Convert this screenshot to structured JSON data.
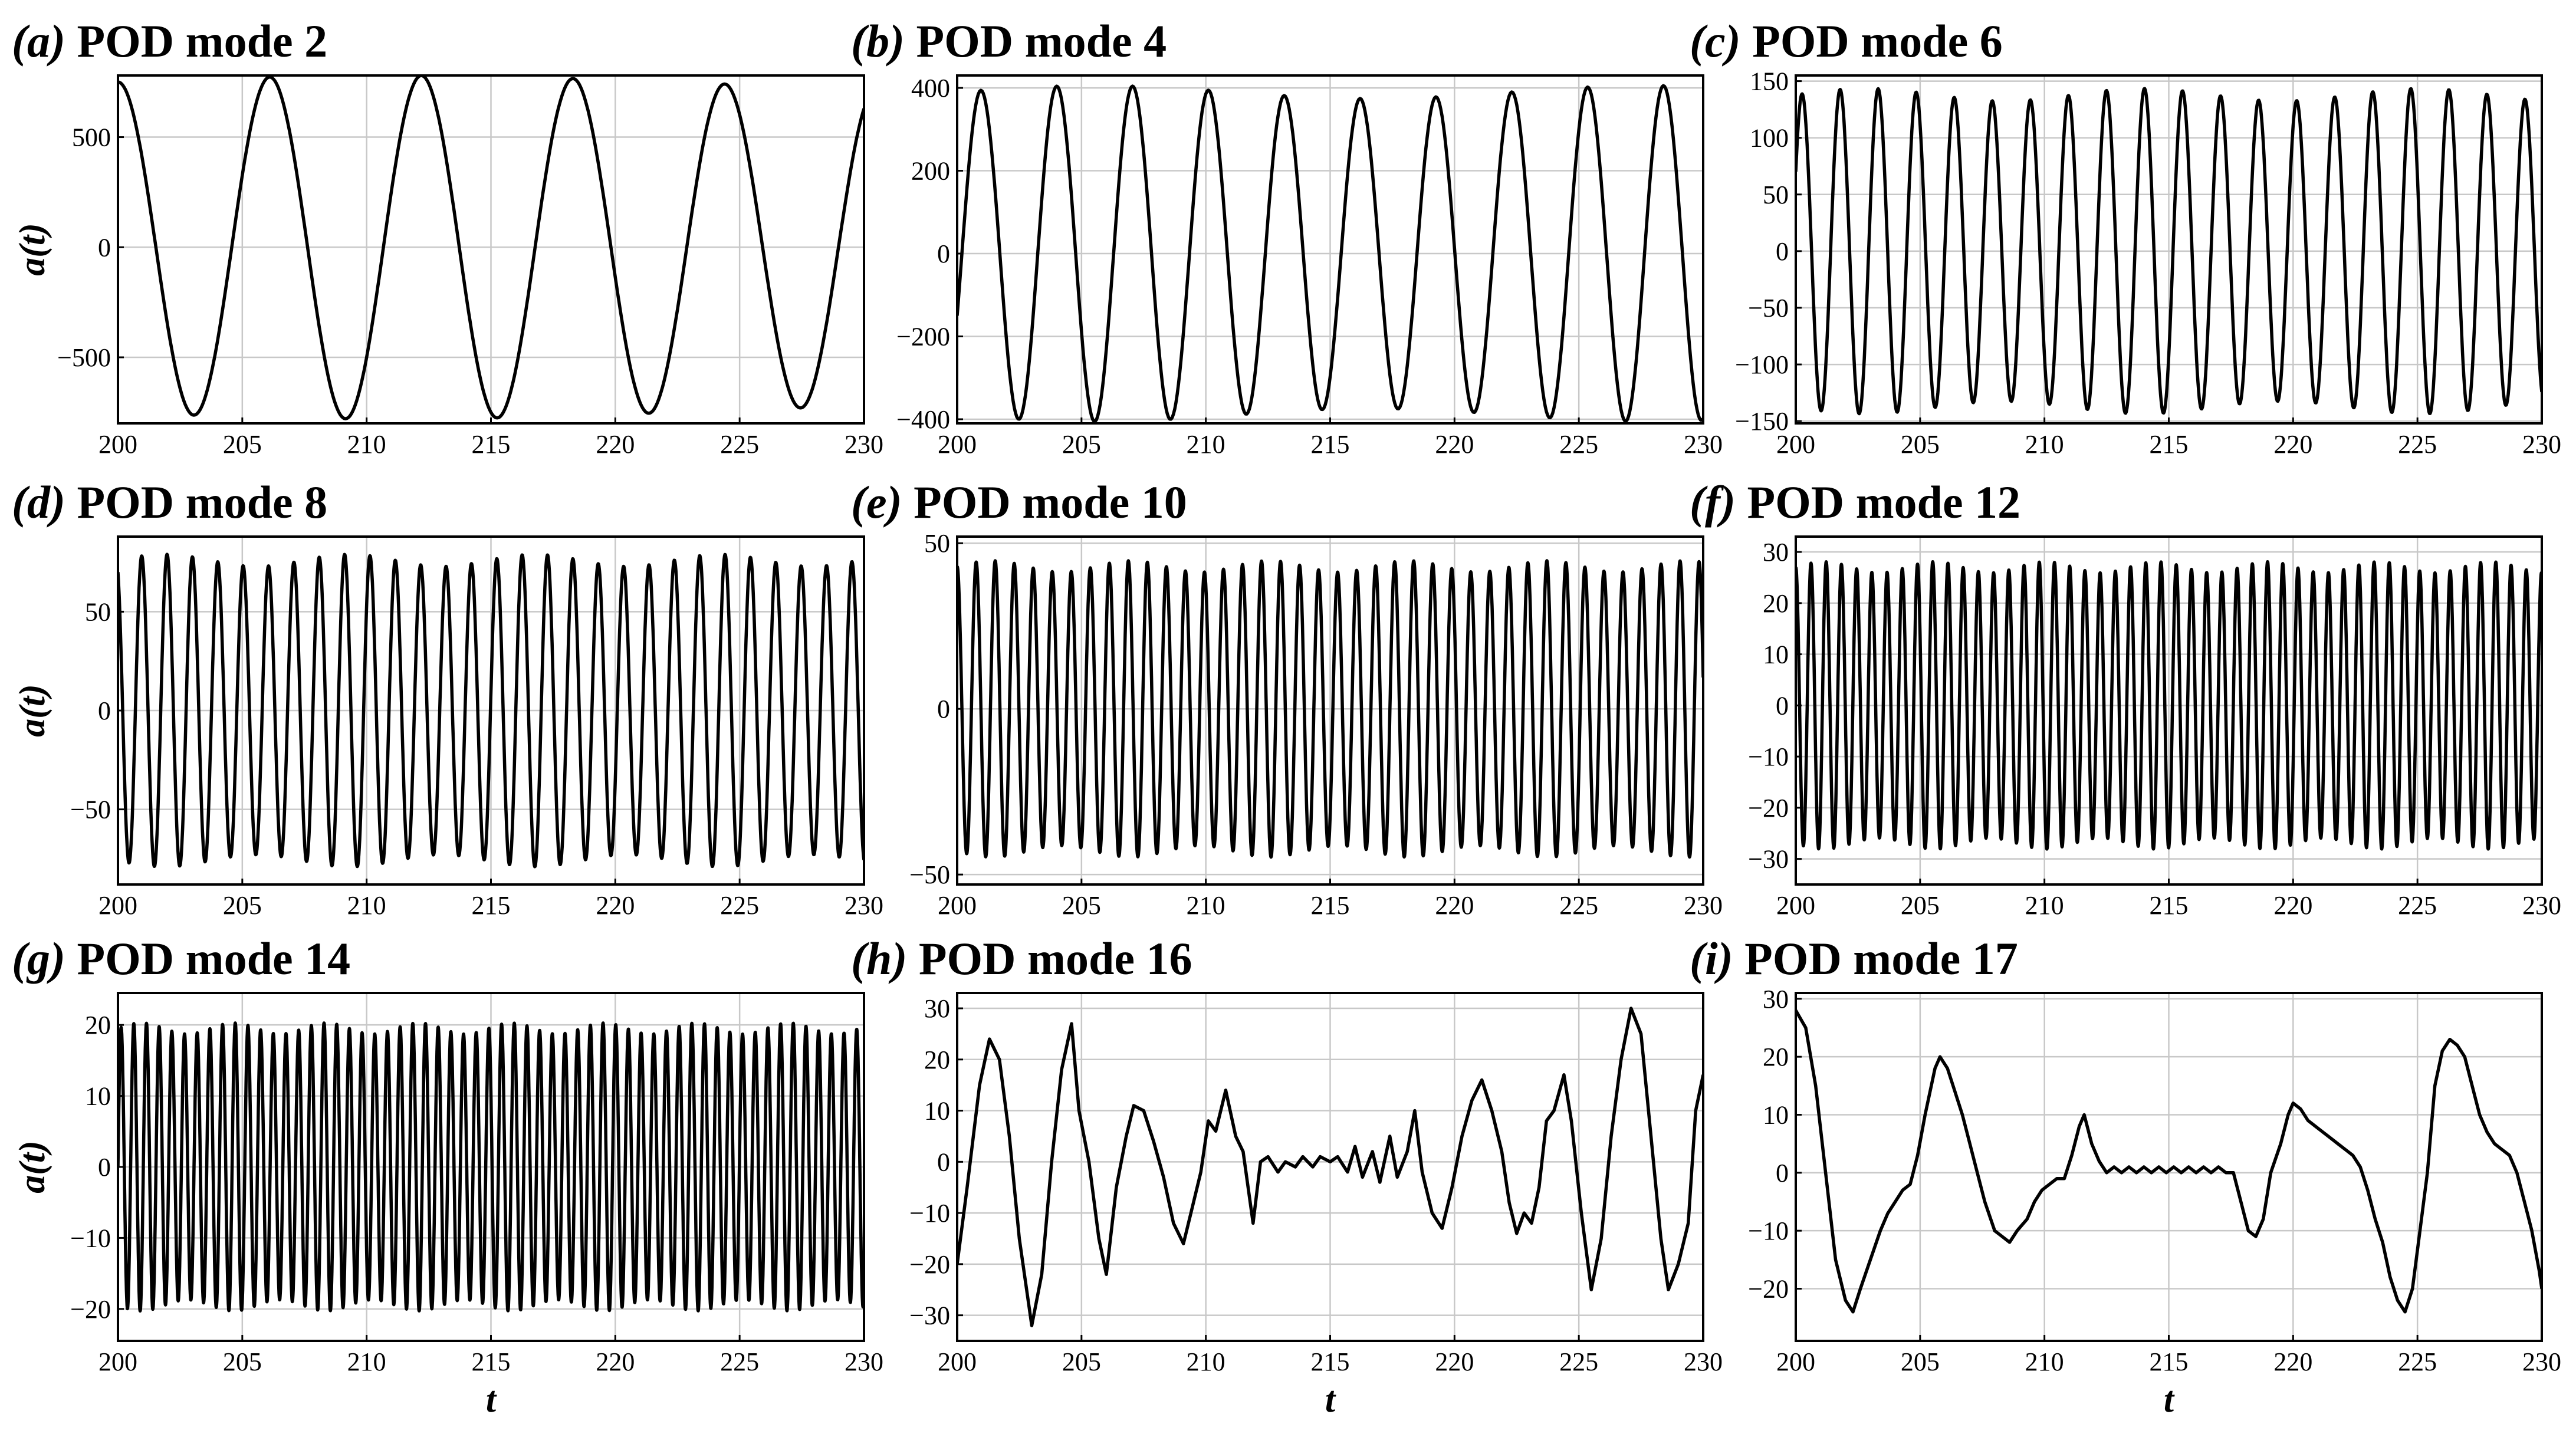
{
  "figure": {
    "xlabel": "t",
    "ylabel": "a(t)"
  },
  "chart_data": [
    {
      "type": "line",
      "tag": "(a)",
      "title": "POD mode 2",
      "xlim": [
        200,
        230
      ],
      "ylim": [
        -800,
        780
      ],
      "xticks": [
        200,
        205,
        210,
        215,
        220,
        225,
        230
      ],
      "yticks": [
        -500,
        0,
        500
      ],
      "ylabel": "a(t)",
      "xlabel": "",
      "signal": {
        "kind": "sine",
        "period": 6.1,
        "amplitude": 750,
        "phase_start": 0.25,
        "start_value": 750
      }
    },
    {
      "type": "line",
      "tag": "(b)",
      "title": "POD mode 4",
      "xlim": [
        200,
        230
      ],
      "ylim": [
        -410,
        430
      ],
      "xticks": [
        200,
        205,
        210,
        215,
        220,
        225,
        230
      ],
      "yticks": [
        -400,
        -200,
        0,
        200,
        400
      ],
      "ylabel": "",
      "xlabel": "",
      "signal": {
        "kind": "sine",
        "period": 3.05,
        "amplitude": 390,
        "phase_start": -0.1,
        "start_value": -150
      }
    },
    {
      "type": "line",
      "tag": "(c)",
      "title": "POD mode 6",
      "xlim": [
        200,
        230
      ],
      "ylim": [
        -152,
        155
      ],
      "xticks": [
        200,
        205,
        210,
        215,
        220,
        225,
        230
      ],
      "yticks": [
        -150,
        -100,
        -50,
        0,
        50,
        100,
        150
      ],
      "ylabel": "",
      "xlabel": "",
      "signal": {
        "kind": "sine",
        "period": 1.53,
        "amplitude": 138,
        "phase_start": 0.05,
        "start_value": 70
      }
    },
    {
      "type": "line",
      "tag": "(d)",
      "title": "POD mode 8",
      "xlim": [
        200,
        230
      ],
      "ylim": [
        -88,
        88
      ],
      "xticks": [
        200,
        205,
        210,
        215,
        220,
        225,
        230
      ],
      "yticks": [
        -50,
        0,
        50
      ],
      "ylabel": "a(t)",
      "xlabel": "",
      "signal": {
        "kind": "sine",
        "period": 1.02,
        "amplitude": 76,
        "phase_start": 0.2,
        "start_value": 70
      }
    },
    {
      "type": "line",
      "tag": "(e)",
      "title": "POD mode 10",
      "xlim": [
        200,
        230
      ],
      "ylim": [
        -53,
        52
      ],
      "xticks": [
        200,
        205,
        210,
        215,
        220,
        225,
        230
      ],
      "yticks": [
        -50,
        0,
        50
      ],
      "ylabel": "",
      "xlabel": "",
      "signal": {
        "kind": "sine",
        "period": 0.765,
        "amplitude": 43,
        "phase_start": 0.25,
        "start_value": 43
      }
    },
    {
      "type": "line",
      "tag": "(f)",
      "title": "POD mode 12",
      "xlim": [
        200,
        230
      ],
      "ylim": [
        -35,
        33
      ],
      "xticks": [
        200,
        205,
        210,
        215,
        220,
        225,
        230
      ],
      "yticks": [
        -30,
        -20,
        -10,
        0,
        10,
        20,
        30
      ],
      "ylabel": "",
      "xlabel": "",
      "signal": {
        "kind": "sine",
        "period": 0.612,
        "amplitude": 27,
        "phase_start": 0.2,
        "start_value": 27
      }
    },
    {
      "type": "line",
      "tag": "(g)",
      "title": "POD mode 14",
      "xlim": [
        200,
        230
      ],
      "ylim": [
        -24.5,
        24.5
      ],
      "xticks": [
        200,
        205,
        210,
        215,
        220,
        225,
        230
      ],
      "yticks": [
        -20,
        -10,
        0,
        10,
        20
      ],
      "ylabel": "a(t)",
      "xlabel": "t",
      "signal": {
        "kind": "sine",
        "period": 0.51,
        "amplitude": 19.5,
        "phase_start": 0.0,
        "start_value": 0
      }
    },
    {
      "type": "line",
      "tag": "(h)",
      "title": "POD mode 16",
      "xlim": [
        200,
        230
      ],
      "ylim": [
        -35,
        33
      ],
      "xticks": [
        200,
        205,
        210,
        215,
        220,
        225,
        230
      ],
      "yticks": [
        -30,
        -20,
        -10,
        0,
        10,
        20,
        30
      ],
      "ylabel": "",
      "xlabel": "t",
      "points": [
        [
          200.0,
          -20
        ],
        [
          200.4,
          -5
        ],
        [
          200.9,
          15
        ],
        [
          201.3,
          24
        ],
        [
          201.7,
          20
        ],
        [
          202.1,
          5
        ],
        [
          202.5,
          -15
        ],
        [
          203.0,
          -32
        ],
        [
          203.4,
          -22
        ],
        [
          203.8,
          0
        ],
        [
          204.2,
          18
        ],
        [
          204.6,
          27
        ],
        [
          204.9,
          10
        ],
        [
          205.3,
          0
        ],
        [
          205.7,
          -15
        ],
        [
          206.0,
          -22
        ],
        [
          206.4,
          -5
        ],
        [
          206.8,
          5
        ],
        [
          207.1,
          11
        ],
        [
          207.5,
          10
        ],
        [
          207.9,
          4
        ],
        [
          208.3,
          -3
        ],
        [
          208.7,
          -12
        ],
        [
          209.1,
          -16
        ],
        [
          209.4,
          -10
        ],
        [
          209.8,
          -2
        ],
        [
          210.1,
          8
        ],
        [
          210.4,
          6
        ],
        [
          210.8,
          14
        ],
        [
          211.2,
          5
        ],
        [
          211.5,
          2
        ],
        [
          211.9,
          -12
        ],
        [
          212.2,
          0
        ],
        [
          212.5,
          1
        ],
        [
          212.9,
          -2
        ],
        [
          213.2,
          0
        ],
        [
          213.6,
          -1
        ],
        [
          213.9,
          1
        ],
        [
          214.3,
          -1
        ],
        [
          214.6,
          1
        ],
        [
          215.0,
          0
        ],
        [
          215.3,
          1
        ],
        [
          215.7,
          -2
        ],
        [
          216.0,
          3
        ],
        [
          216.3,
          -3
        ],
        [
          216.7,
          2
        ],
        [
          217.0,
          -4
        ],
        [
          217.4,
          5
        ],
        [
          217.7,
          -3
        ],
        [
          218.1,
          2
        ],
        [
          218.4,
          10
        ],
        [
          218.7,
          -2
        ],
        [
          219.1,
          -10
        ],
        [
          219.5,
          -13
        ],
        [
          219.9,
          -5
        ],
        [
          220.3,
          5
        ],
        [
          220.7,
          12
        ],
        [
          221.1,
          16
        ],
        [
          221.5,
          10
        ],
        [
          221.9,
          2
        ],
        [
          222.2,
          -8
        ],
        [
          222.5,
          -14
        ],
        [
          222.8,
          -10
        ],
        [
          223.1,
          -12
        ],
        [
          223.4,
          -5
        ],
        [
          223.7,
          8
        ],
        [
          224.0,
          10
        ],
        [
          224.4,
          17
        ],
        [
          224.7,
          8
        ],
        [
          225.1,
          -10
        ],
        [
          225.5,
          -25
        ],
        [
          225.9,
          -15
        ],
        [
          226.3,
          5
        ],
        [
          226.7,
          20
        ],
        [
          227.1,
          30
        ],
        [
          227.5,
          25
        ],
        [
          227.9,
          5
        ],
        [
          228.3,
          -15
        ],
        [
          228.6,
          -25
        ],
        [
          229.0,
          -20
        ],
        [
          229.4,
          -12
        ],
        [
          229.7,
          10
        ],
        [
          230.0,
          17
        ]
      ]
    },
    {
      "type": "line",
      "tag": "(i)",
      "title": "POD mode 17",
      "xlim": [
        200,
        230
      ],
      "ylim": [
        -29,
        31
      ],
      "xticks": [
        200,
        205,
        210,
        215,
        220,
        225,
        230
      ],
      "yticks": [
        -20,
        -10,
        0,
        10,
        20,
        30
      ],
      "ylabel": "",
      "xlabel": "t",
      "points": [
        [
          200.0,
          28
        ],
        [
          200.4,
          25
        ],
        [
          200.8,
          15
        ],
        [
          201.2,
          0
        ],
        [
          201.6,
          -15
        ],
        [
          202.0,
          -22
        ],
        [
          202.3,
          -24
        ],
        [
          202.6,
          -20
        ],
        [
          203.0,
          -15
        ],
        [
          203.4,
          -10
        ],
        [
          203.7,
          -7
        ],
        [
          204.0,
          -5
        ],
        [
          204.3,
          -3
        ],
        [
          204.6,
          -2
        ],
        [
          204.9,
          3
        ],
        [
          205.2,
          10
        ],
        [
          205.6,
          18
        ],
        [
          205.8,
          20
        ],
        [
          206.1,
          18
        ],
        [
          206.4,
          14
        ],
        [
          206.7,
          10
        ],
        [
          207.0,
          5
        ],
        [
          207.3,
          0
        ],
        [
          207.6,
          -5
        ],
        [
          208.0,
          -10
        ],
        [
          208.3,
          -11
        ],
        [
          208.6,
          -12
        ],
        [
          208.9,
          -10
        ],
        [
          209.3,
          -8
        ],
        [
          209.6,
          -5
        ],
        [
          209.9,
          -3
        ],
        [
          210.2,
          -2
        ],
        [
          210.5,
          -1
        ],
        [
          210.8,
          -1
        ],
        [
          211.1,
          3
        ],
        [
          211.4,
          8
        ],
        [
          211.6,
          10
        ],
        [
          211.9,
          5
        ],
        [
          212.2,
          2
        ],
        [
          212.5,
          0
        ],
        [
          212.8,
          1
        ],
        [
          213.1,
          0
        ],
        [
          213.4,
          1
        ],
        [
          213.7,
          0
        ],
        [
          214.0,
          1
        ],
        [
          214.3,
          0
        ],
        [
          214.6,
          1
        ],
        [
          214.9,
          0
        ],
        [
          215.2,
          1
        ],
        [
          215.5,
          0
        ],
        [
          215.8,
          1
        ],
        [
          216.1,
          0
        ],
        [
          216.4,
          1
        ],
        [
          216.7,
          0
        ],
        [
          217.0,
          1
        ],
        [
          217.3,
          0
        ],
        [
          217.6,
          0
        ],
        [
          217.9,
          -5
        ],
        [
          218.2,
          -10
        ],
        [
          218.5,
          -11
        ],
        [
          218.8,
          -8
        ],
        [
          219.1,
          0
        ],
        [
          219.5,
          5
        ],
        [
          219.8,
          10
        ],
        [
          220.0,
          12
        ],
        [
          220.3,
          11
        ],
        [
          220.6,
          9
        ],
        [
          220.9,
          8
        ],
        [
          221.2,
          7
        ],
        [
          221.5,
          6
        ],
        [
          221.8,
          5
        ],
        [
          222.1,
          4
        ],
        [
          222.4,
          3
        ],
        [
          222.7,
          1
        ],
        [
          223.0,
          -3
        ],
        [
          223.3,
          -8
        ],
        [
          223.6,
          -12
        ],
        [
          223.9,
          -18
        ],
        [
          224.2,
          -22
        ],
        [
          224.5,
          -24
        ],
        [
          224.8,
          -20
        ],
        [
          225.1,
          -10
        ],
        [
          225.4,
          0
        ],
        [
          225.7,
          15
        ],
        [
          226.0,
          21
        ],
        [
          226.3,
          23
        ],
        [
          226.6,
          22
        ],
        [
          226.9,
          20
        ],
        [
          227.2,
          15
        ],
        [
          227.5,
          10
        ],
        [
          227.8,
          7
        ],
        [
          228.1,
          5
        ],
        [
          228.4,
          4
        ],
        [
          228.7,
          3
        ],
        [
          229.0,
          0
        ],
        [
          229.3,
          -5
        ],
        [
          229.6,
          -10
        ],
        [
          229.9,
          -17
        ],
        [
          230.0,
          -20
        ]
      ]
    }
  ]
}
